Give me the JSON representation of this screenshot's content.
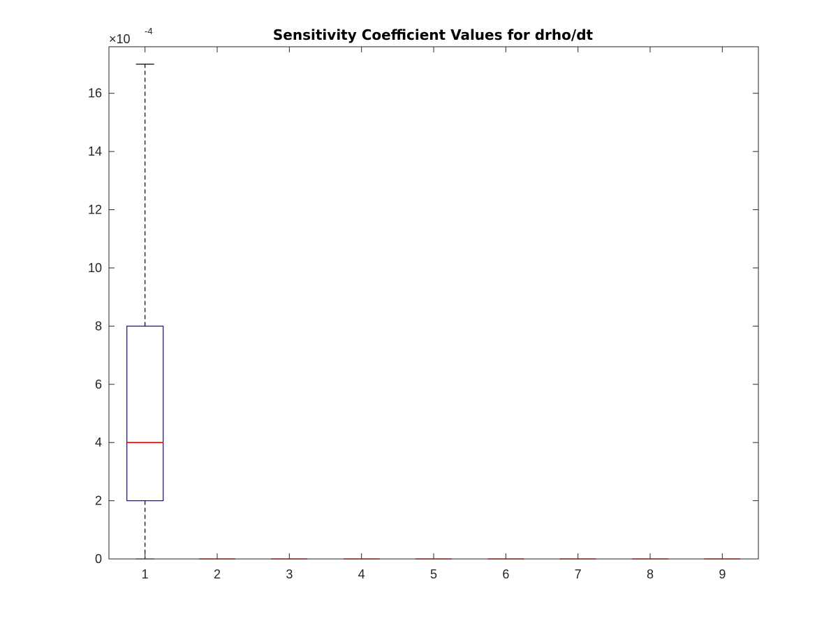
{
  "chart_data": {
    "type": "box",
    "title": "Sensitivity Coefficient Values for drho/dt",
    "xlabel": "",
    "ylabel": "",
    "categories": [
      "1",
      "2",
      "3",
      "4",
      "5",
      "6",
      "7",
      "8",
      "9"
    ],
    "y_scale_multiplier": "×10",
    "y_scale_exponent": "-4",
    "ylim": [
      0,
      0.00176
    ],
    "y_ticks": [
      0,
      0.0002,
      0.0004,
      0.0006,
      0.0008,
      0.001,
      0.0012,
      0.0014,
      0.0016
    ],
    "y_tick_labels": [
      "0",
      "2",
      "4",
      "6",
      "8",
      "10",
      "12",
      "14",
      "16"
    ],
    "boxes": [
      {
        "category": "1",
        "whisker_low": 0,
        "q1": 0.0002,
        "median": 0.0004,
        "q3": 0.0008,
        "whisker_high": 0.0017
      },
      {
        "category": "2",
        "whisker_low": 0,
        "q1": 0,
        "median": 0,
        "q3": 0,
        "whisker_high": 0
      },
      {
        "category": "3",
        "whisker_low": 0,
        "q1": 0,
        "median": 0,
        "q3": 0,
        "whisker_high": 0
      },
      {
        "category": "4",
        "whisker_low": 0,
        "q1": 0,
        "median": 0,
        "q3": 0,
        "whisker_high": 0
      },
      {
        "category": "5",
        "whisker_low": 0,
        "q1": 0,
        "median": 0,
        "q3": 0,
        "whisker_high": 0
      },
      {
        "category": "6",
        "whisker_low": 0,
        "q1": 0,
        "median": 0,
        "q3": 0,
        "whisker_high": 0
      },
      {
        "category": "7",
        "whisker_low": 0,
        "q1": 0,
        "median": 0,
        "q3": 0,
        "whisker_high": 0
      },
      {
        "category": "8",
        "whisker_low": 0,
        "q1": 0,
        "median": 0,
        "q3": 0,
        "whisker_high": 0
      },
      {
        "category": "9",
        "whisker_low": 0,
        "q1": 0,
        "median": 0,
        "q3": 0,
        "whisker_high": 0
      }
    ],
    "grid": false,
    "colors": {
      "box": "#0000ff",
      "median": "#ff0000",
      "whisker": "#000000",
      "axis": "#262626"
    }
  }
}
